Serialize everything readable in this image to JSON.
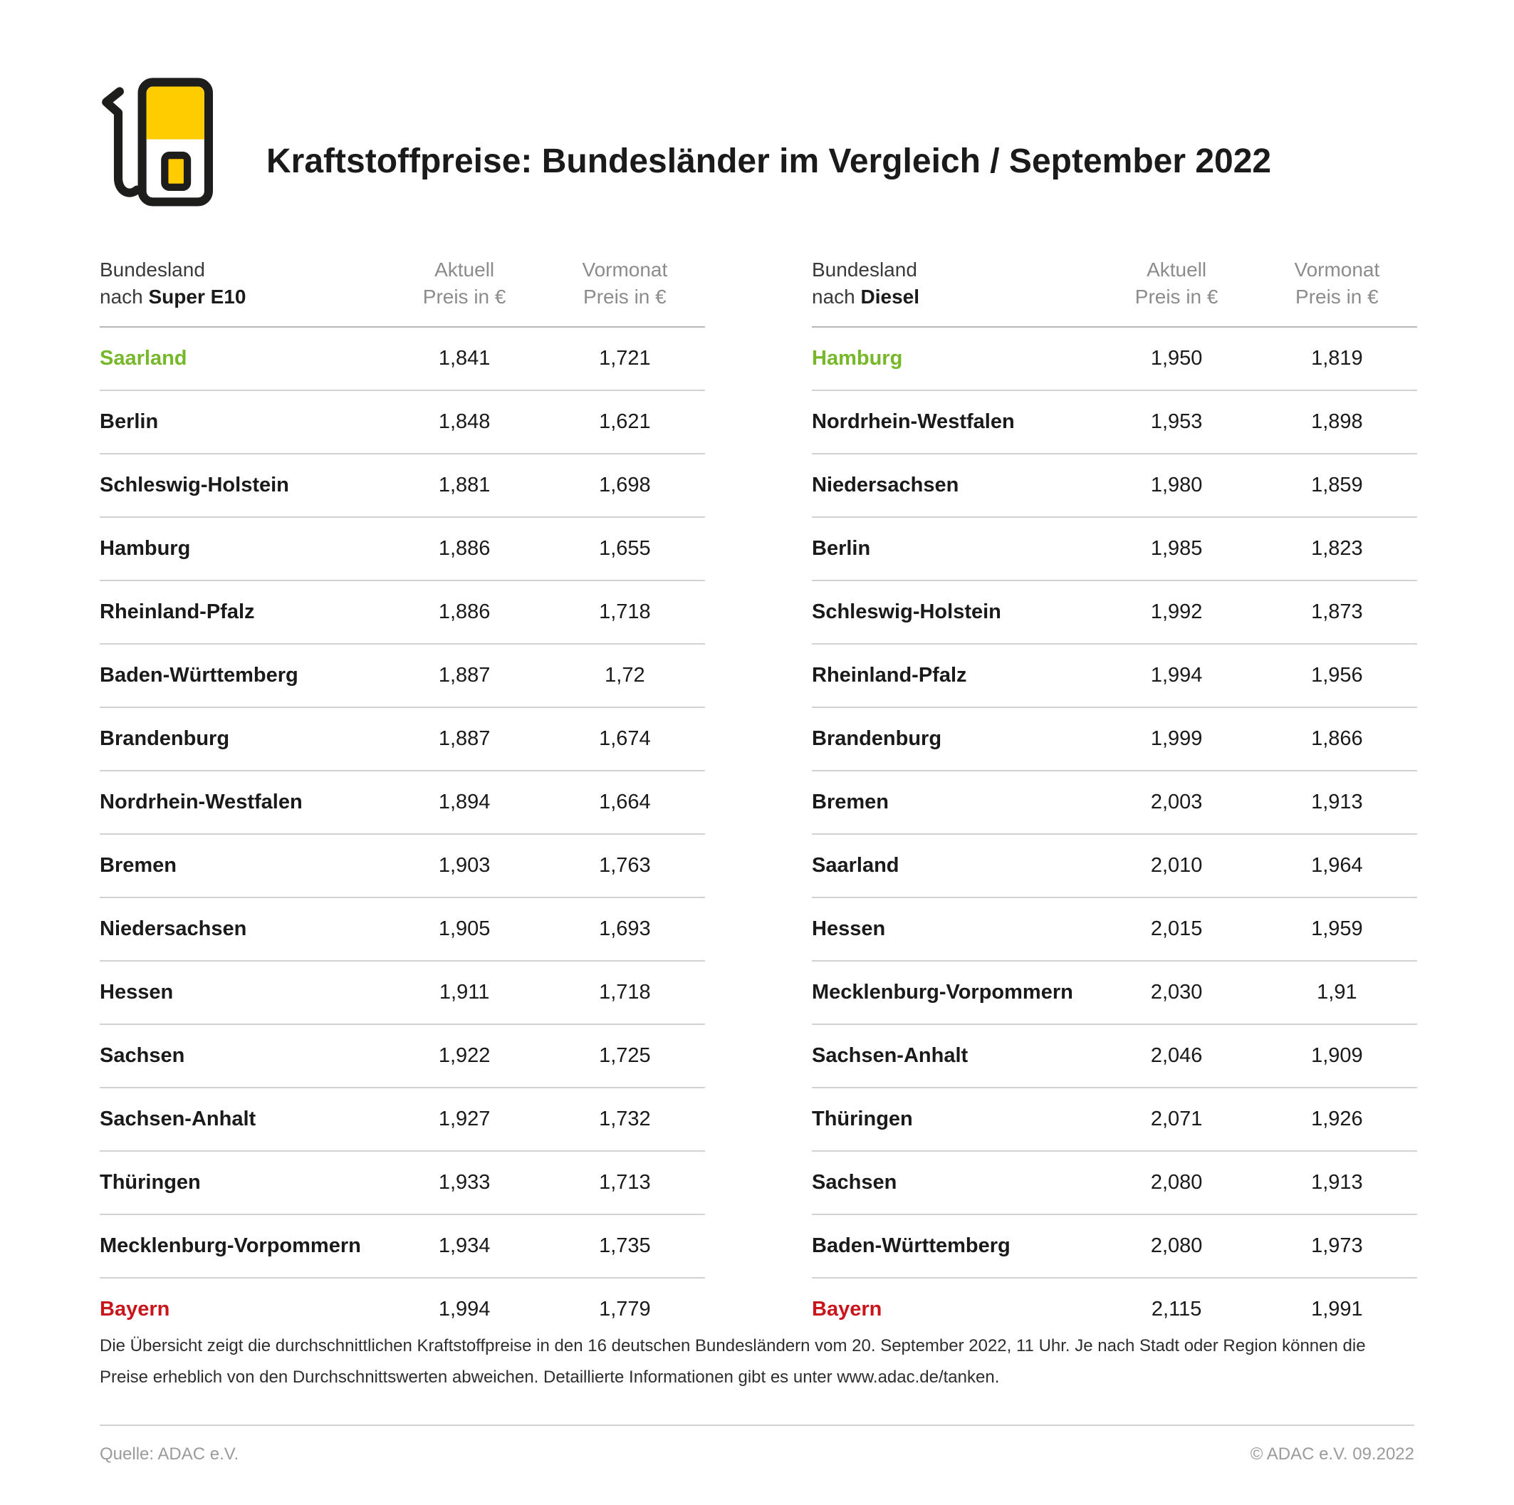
{
  "page": {
    "title": "Kraftstoffpreise: Bundesländer im Vergleich / September 2022",
    "footnote": "Die Übersicht zeigt die durchschnittlichen Kraftstoffpreise in den 16 deutschen Bundesländern vom 20. September 2022, 11 Uhr. Je nach Stadt oder Region können die Preise erheblich von den Durchschnittswerten abweichen. Detaillierte Informationen gibt es unter www.adac.de/tanken.",
    "source": "Quelle: ADAC e.V.",
    "copyright": "© ADAC e.V. 09.2022"
  },
  "colors": {
    "adac_yellow": "#ffcc00",
    "highlight_green": "#76b82a",
    "highlight_red": "#c8161c",
    "text_dark": "#1a1a1a",
    "text_gray": "#8c8c8c",
    "divider_gray": "#d2d2d2"
  },
  "icons": [
    {
      "name": "fuel-pump-icon",
      "meaning": "petrol pump with hose and nozzle"
    }
  ],
  "chart_data": [
    {
      "type": "table",
      "id": "super-e10",
      "fuel": "Super E10",
      "title": "Bundesland nach Super E10",
      "header": {
        "col1_line1": "Bundesland",
        "col1_line2_regular": "nach ",
        "col1_line2_bold": "Super E10",
        "col2_line1": "Aktuell",
        "col2_line2": "Preis in €",
        "col3_line1": "Vormonat",
        "col3_line2": "Preis in €"
      },
      "rows": [
        {
          "state": "Saarland",
          "aktuell": "1,841",
          "vormonat": "1,721",
          "highlight": "green"
        },
        {
          "state": "Berlin",
          "aktuell": "1,848",
          "vormonat": "1,621"
        },
        {
          "state": "Schleswig-Holstein",
          "aktuell": "1,881",
          "vormonat": "1,698"
        },
        {
          "state": "Hamburg",
          "aktuell": "1,886",
          "vormonat": "1,655"
        },
        {
          "state": "Rheinland-Pfalz",
          "aktuell": "1,886",
          "vormonat": "1,718"
        },
        {
          "state": "Baden-Württemberg",
          "aktuell": "1,887",
          "vormonat": "1,72"
        },
        {
          "state": "Brandenburg",
          "aktuell": "1,887",
          "vormonat": "1,674"
        },
        {
          "state": "Nordrhein-Westfalen",
          "aktuell": "1,894",
          "vormonat": "1,664"
        },
        {
          "state": "Bremen",
          "aktuell": "1,903",
          "vormonat": "1,763"
        },
        {
          "state": "Niedersachsen",
          "aktuell": "1,905",
          "vormonat": "1,693"
        },
        {
          "state": "Hessen",
          "aktuell": "1,911",
          "vormonat": "1,718"
        },
        {
          "state": "Sachsen",
          "aktuell": "1,922",
          "vormonat": "1,725"
        },
        {
          "state": "Sachsen-Anhalt",
          "aktuell": "1,927",
          "vormonat": "1,732"
        },
        {
          "state": "Thüringen",
          "aktuell": "1,933",
          "vormonat": "1,713"
        },
        {
          "state": "Mecklenburg-Vorpommern",
          "aktuell": "1,934",
          "vormonat": "1,735"
        },
        {
          "state": "Bayern",
          "aktuell": "1,994",
          "vormonat": "1,779",
          "highlight": "red"
        }
      ]
    },
    {
      "type": "table",
      "id": "diesel",
      "fuel": "Diesel",
      "title": "Bundesland nach Diesel",
      "header": {
        "col1_line1": "Bundesland",
        "col1_line2_regular": "nach ",
        "col1_line2_bold": "Diesel",
        "col2_line1": "Aktuell",
        "col2_line2": "Preis in €",
        "col3_line1": "Vormonat",
        "col3_line2": "Preis in €"
      },
      "rows": [
        {
          "state": "Hamburg",
          "aktuell": "1,950",
          "vormonat": "1,819",
          "highlight": "green"
        },
        {
          "state": "Nordrhein-Westfalen",
          "aktuell": "1,953",
          "vormonat": "1,898"
        },
        {
          "state": "Niedersachsen",
          "aktuell": "1,980",
          "vormonat": "1,859"
        },
        {
          "state": "Berlin",
          "aktuell": "1,985",
          "vormonat": "1,823"
        },
        {
          "state": "Schleswig-Holstein",
          "aktuell": "1,992",
          "vormonat": "1,873"
        },
        {
          "state": "Rheinland-Pfalz",
          "aktuell": "1,994",
          "vormonat": "1,956"
        },
        {
          "state": "Brandenburg",
          "aktuell": "1,999",
          "vormonat": "1,866"
        },
        {
          "state": "Bremen",
          "aktuell": "2,003",
          "vormonat": "1,913"
        },
        {
          "state": "Saarland",
          "aktuell": "2,010",
          "vormonat": "1,964"
        },
        {
          "state": "Hessen",
          "aktuell": "2,015",
          "vormonat": "1,959"
        },
        {
          "state": "Mecklenburg-Vorpommern",
          "aktuell": "2,030",
          "vormonat": "1,91"
        },
        {
          "state": "Sachsen-Anhalt",
          "aktuell": "2,046",
          "vormonat": "1,909"
        },
        {
          "state": "Thüringen",
          "aktuell": "2,071",
          "vormonat": "1,926"
        },
        {
          "state": "Sachsen",
          "aktuell": "2,080",
          "vormonat": "1,913"
        },
        {
          "state": "Baden-Württemberg",
          "aktuell": "2,080",
          "vormonat": "1,973"
        },
        {
          "state": "Bayern",
          "aktuell": "2,115",
          "vormonat": "1,991",
          "highlight": "red"
        }
      ]
    }
  ]
}
